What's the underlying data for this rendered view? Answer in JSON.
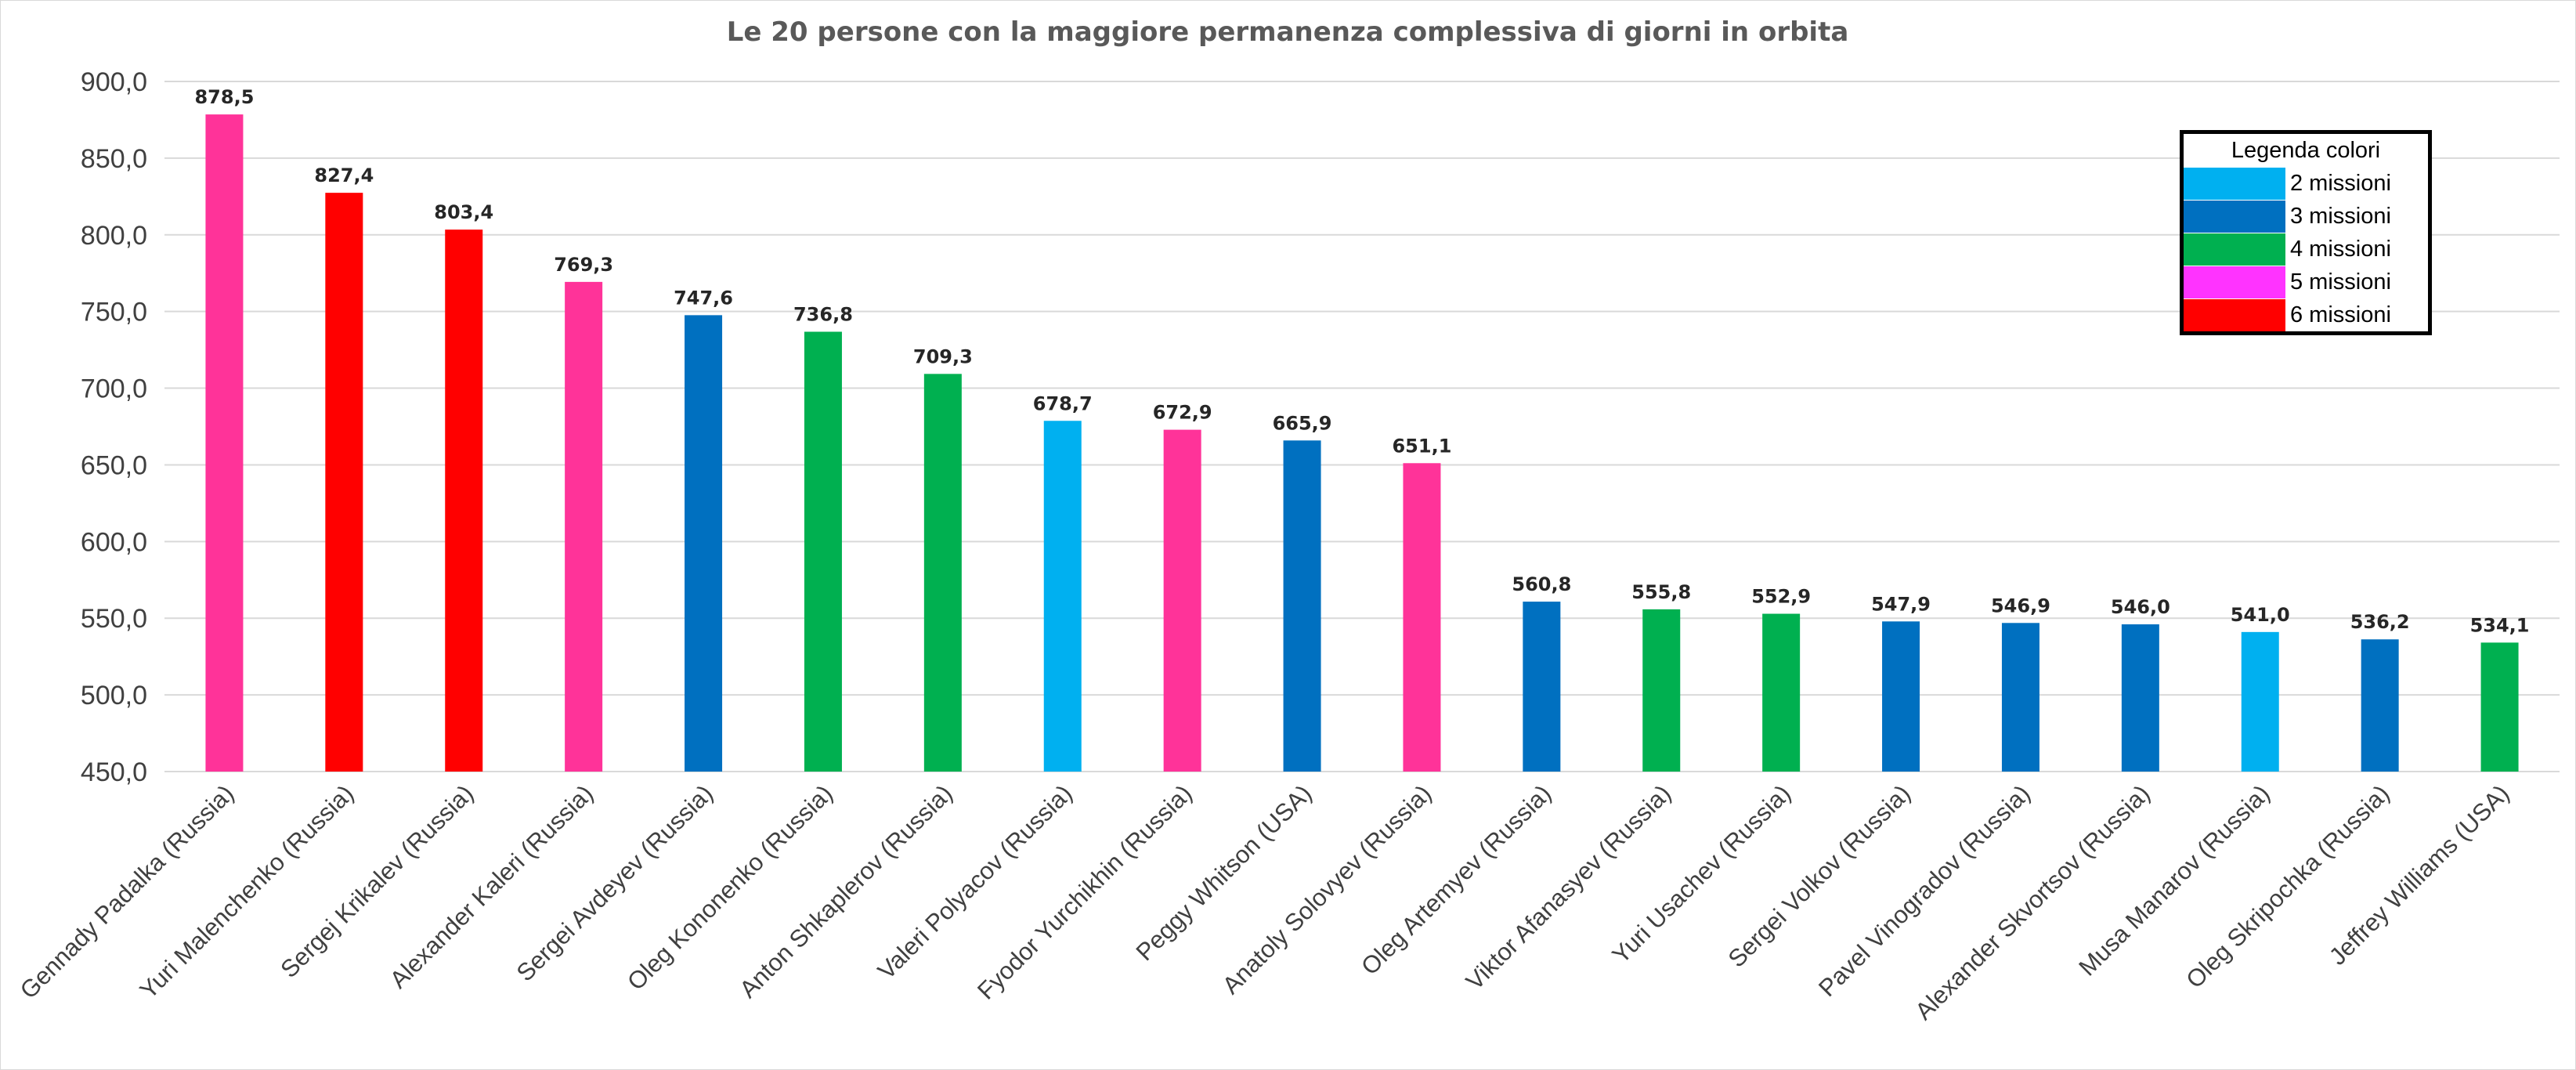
{
  "chart_data": {
    "type": "bar",
    "title": "Le 20 persone con la maggiore permanenza complessiva di giorni in orbita",
    "xlabel": "",
    "ylabel": "",
    "ylim": [
      450,
      900
    ],
    "yticks": [
      "450,0",
      "500,0",
      "550,0",
      "600,0",
      "650,0",
      "700,0",
      "750,0",
      "800,0",
      "850,0",
      "900,0"
    ],
    "ytick_values": [
      450,
      500,
      550,
      600,
      650,
      700,
      750,
      800,
      850,
      900
    ],
    "grid": true,
    "legend_position": "top-right",
    "categories": [
      "Gennady Padalka (Russia)",
      "Yuri Malenchenko (Russia)",
      "Sergej Krikalev (Russia)",
      "Alexander Kaleri (Russia)",
      "Sergei Avdeyev (Russia)",
      "Oleg Kononenko (Russia)",
      "Anton Shkaplerov (Russia)",
      "Valeri Polyacov (Russia)",
      "Fyodor Yurchikhin (Russia)",
      "Peggy Whitson (USA)",
      "Anatoly Solovyev (Russia)",
      "Oleg Artemyev  (Russia)",
      "Viktor Afanasyev (Russia)",
      "Yuri Usachev (Russia)",
      "Sergei Volkov (Russia)",
      "Pavel Vinogradov (Russia)",
      "Alexander Skvortsov (Russia)",
      "Musa Manarov (Russia)",
      "Oleg Skripochka (Russia)",
      "Jeffrey Williams (USA)"
    ],
    "values": [
      878.5,
      827.4,
      803.4,
      769.3,
      747.6,
      736.8,
      709.3,
      678.7,
      672.9,
      665.9,
      651.1,
      560.8,
      555.8,
      552.9,
      547.9,
      546.9,
      546.0,
      541.0,
      536.2,
      534.1
    ],
    "value_labels": [
      "878,5",
      "827,4",
      "803,4",
      "769,3",
      "747,6",
      "736,8",
      "709,3",
      "678,7",
      "672,9",
      "665,9",
      "651,1",
      "560,8",
      "555,8",
      "552,9",
      "547,9",
      "546,9",
      "546,0",
      "541,0",
      "536,2",
      "534,1"
    ],
    "bar_colors": [
      "#ff3399",
      "#ff0000",
      "#ff0000",
      "#ff3399",
      "#0070c0",
      "#00b050",
      "#00b050",
      "#00b0f0",
      "#ff3399",
      "#0070c0",
      "#ff3399",
      "#0070c0",
      "#00b050",
      "#00b050",
      "#0070c0",
      "#0070c0",
      "#0070c0",
      "#00b0f0",
      "#0070c0",
      "#00b050"
    ],
    "legend": {
      "title": "Legenda colori",
      "items": [
        {
          "label": "2 missioni",
          "color": "#00b0f0"
        },
        {
          "label": "3 missioni",
          "color": "#0070c0"
        },
        {
          "label": "4 missioni",
          "color": "#00b050"
        },
        {
          "label": "5 missioni",
          "color": "#ff33ff"
        },
        {
          "label": "6 missioni",
          "color": "#ff0000"
        }
      ]
    }
  }
}
